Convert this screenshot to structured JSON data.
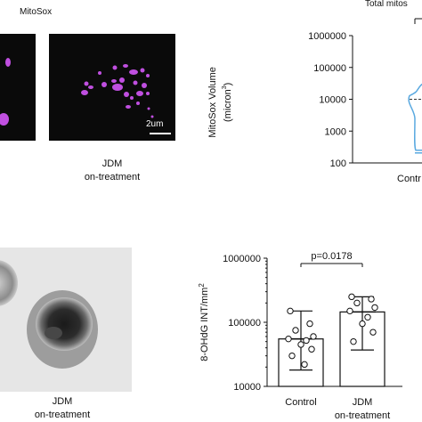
{
  "panel_top": {
    "section_label": "MitoSox",
    "right_title": "Total mitos",
    "image_caption_line1": "JDM",
    "image_caption_line2": "on-treatment",
    "scalebar_label": "2um",
    "image_ylabel_line1": "MitoSox Volume",
    "image_ylabel_line2": "(micron",
    "image_ylabel_sup": "3",
    "image_ylabel_end": ")"
  },
  "panel_bottom": {
    "image_caption_line1": "JDM",
    "image_caption_line2": "on-treatment"
  },
  "colors": {
    "mitosox_signal": "#c04fe0",
    "violin": "#5aa9e0",
    "bar_outline": "#111111",
    "point_fill": "#ffffff"
  },
  "chart_data": [
    {
      "type": "violin",
      "title": "Total mitos",
      "ylabel": "MitoSox Volume (micron3)",
      "yscale": "log",
      "ylim": [
        100,
        1000000
      ],
      "yticks": [
        "1000000",
        "100000",
        "10000",
        "1000",
        "100"
      ],
      "categories": [
        "Contr"
      ],
      "series": [
        {
          "values_median": 10000,
          "values_max": 30000,
          "values_min": 250
        }
      ]
    },
    {
      "type": "bar",
      "ylabel": "8-OHdG INT/mm",
      "ylabel_sup": "2",
      "yscale": "log",
      "ylim": [
        10000,
        1000000
      ],
      "yticks": [
        "1000000",
        "100000",
        "10000"
      ],
      "categories": [
        "Control",
        "JDM"
      ],
      "category_sublabels": [
        "",
        "on-treatment"
      ],
      "bars": [
        {
          "mean": 55000,
          "err_low": 18000,
          "err_high": 150000,
          "points": [
            150000,
            95000,
            75000,
            60000,
            55000,
            52000,
            45000,
            38000,
            30000,
            22000
          ]
        },
        {
          "mean": 145000,
          "err_low": 37000,
          "err_high": 250000,
          "points": [
            250000,
            230000,
            200000,
            170000,
            150000,
            120000,
            95000,
            70000,
            50000
          ]
        }
      ],
      "annotation": "p=0.0178"
    }
  ]
}
